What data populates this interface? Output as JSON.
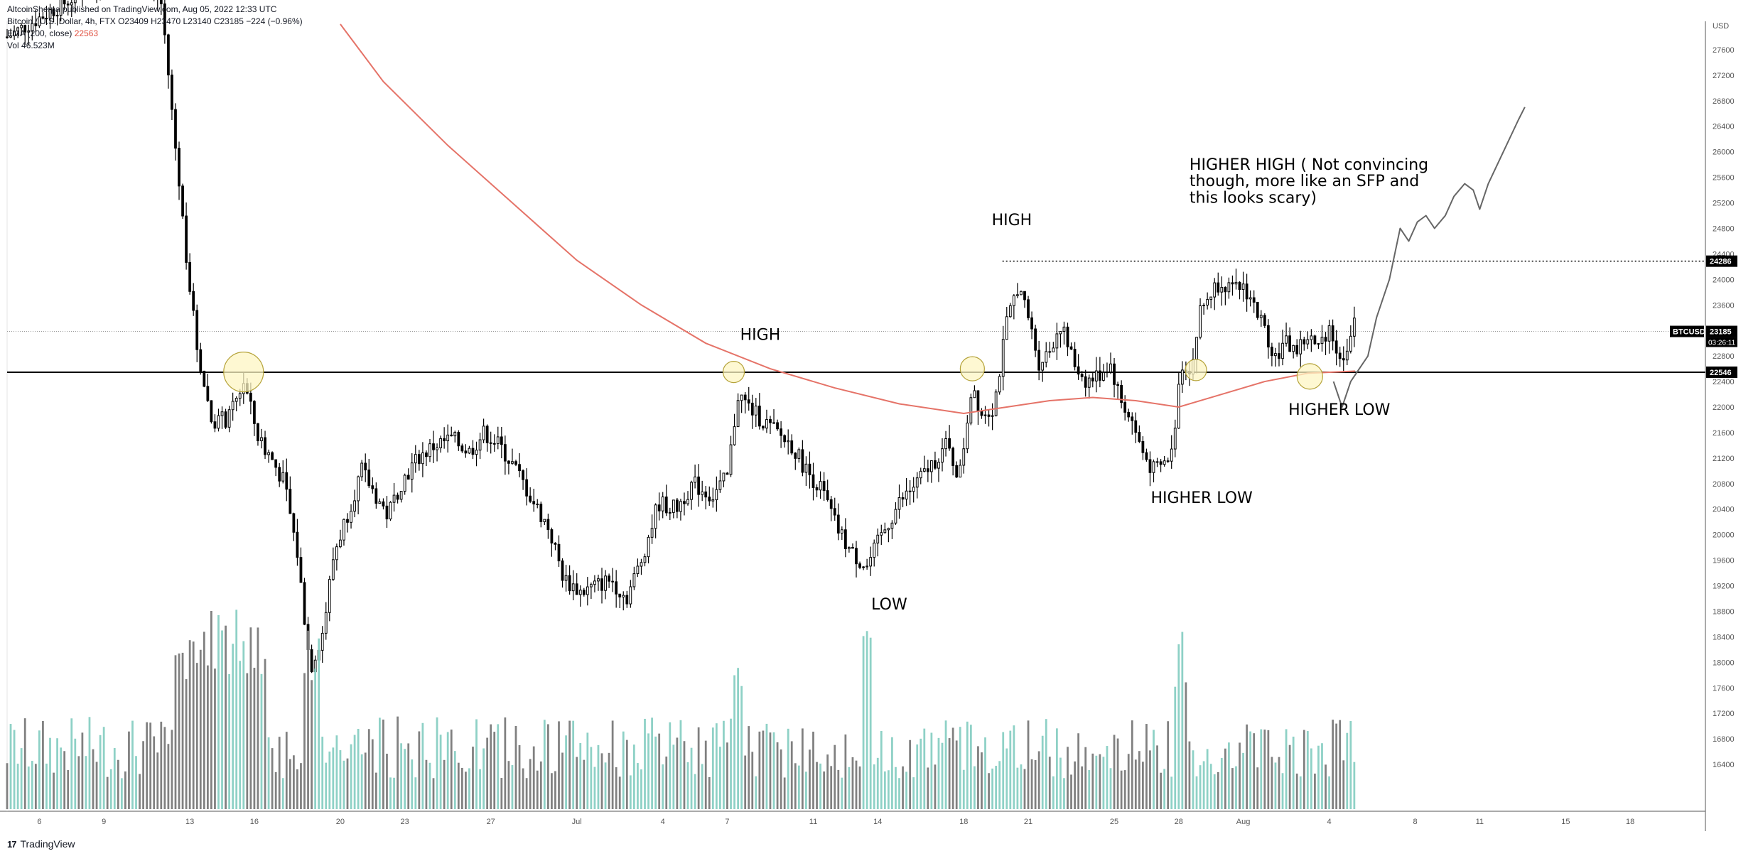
{
  "header": {
    "published_by": "AltcoinSherpa published on TradingView.com, Aug 05, 2022 12:33 UTC",
    "symbol_line_prefix": "Bitcoin / U.S. Dollar, 4h, FTX",
    "ohlc": "O23409  H23470  L23140  C23185  −224 (−0.96%)",
    "ema_label": "EMA (200, close)",
    "ema_value": "22563",
    "vol_label": "Vol",
    "vol_value": "46.523M"
  },
  "footer": {
    "brand": "TradingView"
  },
  "colors": {
    "candle": "#000000",
    "ema": "#e57368",
    "vol_up": "#8ed1c6",
    "vol_down": "#808080",
    "circle_fill": "#fdf6c3",
    "circle_stroke": "#b5a33a"
  },
  "chart_data": {
    "type": "candlestick",
    "title": "Bitcoin / U.S. Dollar, 4h, FTX",
    "currency": "USD",
    "ylim": [
      16000,
      28000
    ],
    "y_ticks": [
      16400,
      16800,
      17200,
      17600,
      18000,
      18400,
      18800,
      19200,
      19600,
      20000,
      20400,
      20800,
      21200,
      21600,
      22000,
      22400,
      22800,
      23200,
      23600,
      24000,
      24400,
      24800,
      25200,
      25600,
      26000,
      26400,
      26800,
      27200,
      27600
    ],
    "x_ticks": [
      {
        "label": "6",
        "day": 6
      },
      {
        "label": "9",
        "day": 9
      },
      {
        "label": "13",
        "day": 13
      },
      {
        "label": "16",
        "day": 16
      },
      {
        "label": "20",
        "day": 20
      },
      {
        "label": "23",
        "day": 23
      },
      {
        "label": "27",
        "day": 27
      },
      {
        "label": "Jul",
        "day": 31
      },
      {
        "label": "4",
        "day": 35
      },
      {
        "label": "7",
        "day": 38
      },
      {
        "label": "11",
        "day": 42
      },
      {
        "label": "14",
        "day": 45
      },
      {
        "label": "18",
        "day": 49
      },
      {
        "label": "21",
        "day": 52
      },
      {
        "label": "25",
        "day": 56
      },
      {
        "label": "28",
        "day": 59
      },
      {
        "label": "Aug",
        "day": 62
      },
      {
        "label": "4",
        "day": 66
      },
      {
        "label": "8",
        "day": 70
      },
      {
        "label": "11",
        "day": 73
      },
      {
        "label": "15",
        "day": 77
      },
      {
        "label": "18",
        "day": 80
      }
    ],
    "price_keypoints": [
      [
        4.5,
        27800
      ],
      [
        10.5,
        29000
      ],
      [
        11.7,
        28300
      ],
      [
        12.2,
        26500
      ],
      [
        12.8,
        24500
      ],
      [
        13.3,
        23000
      ],
      [
        14.0,
        21800
      ],
      [
        14.8,
        21800
      ],
      [
        15.5,
        22400
      ],
      [
        16.2,
        21500
      ],
      [
        16.8,
        21200
      ],
      [
        17.4,
        20800
      ],
      [
        18.0,
        19700
      ],
      [
        18.6,
        17900
      ],
      [
        19.2,
        18500
      ],
      [
        19.7,
        19700
      ],
      [
        20.3,
        20300
      ],
      [
        21.0,
        21000
      ],
      [
        21.5,
        20700
      ],
      [
        22.2,
        20300
      ],
      [
        22.8,
        20800
      ],
      [
        23.6,
        21200
      ],
      [
        24.4,
        21400
      ],
      [
        25.2,
        21500
      ],
      [
        26.0,
        21300
      ],
      [
        26.7,
        21600
      ],
      [
        27.4,
        21400
      ],
      [
        28.2,
        21000
      ],
      [
        29.0,
        20500
      ],
      [
        29.7,
        20100
      ],
      [
        30.4,
        19300
      ],
      [
        31.2,
        19100
      ],
      [
        31.9,
        19200
      ],
      [
        32.6,
        19300
      ],
      [
        33.3,
        19000
      ],
      [
        34.0,
        19600
      ],
      [
        34.8,
        20500
      ],
      [
        35.6,
        20400
      ],
      [
        36.4,
        20800
      ],
      [
        37.3,
        20600
      ],
      [
        38.0,
        20900
      ],
      [
        38.5,
        22200
      ],
      [
        39.0,
        22000
      ],
      [
        39.6,
        21800
      ],
      [
        40.3,
        21600
      ],
      [
        41.0,
        21400
      ],
      [
        41.7,
        21000
      ],
      [
        42.4,
        20700
      ],
      [
        43.1,
        20100
      ],
      [
        43.8,
        19700
      ],
      [
        44.5,
        19500
      ],
      [
        45.2,
        20000
      ],
      [
        46.0,
        20500
      ],
      [
        46.8,
        20800
      ],
      [
        47.5,
        21100
      ],
      [
        48.2,
        21400
      ],
      [
        48.8,
        20900
      ],
      [
        49.4,
        22400
      ],
      [
        49.8,
        21900
      ],
      [
        50.4,
        22000
      ],
      [
        51.0,
        23300
      ],
      [
        51.5,
        23900
      ],
      [
        52.0,
        23400
      ],
      [
        52.5,
        22700
      ],
      [
        53.0,
        22900
      ],
      [
        53.5,
        23300
      ],
      [
        54.1,
        22700
      ],
      [
        54.7,
        22400
      ],
      [
        55.3,
        22500
      ],
      [
        55.8,
        22700
      ],
      [
        56.3,
        22100
      ],
      [
        56.8,
        21800
      ],
      [
        57.3,
        21300
      ],
      [
        57.8,
        21000
      ],
      [
        58.3,
        21100
      ],
      [
        58.7,
        21300
      ],
      [
        59.1,
        22700
      ],
      [
        59.6,
        22600
      ],
      [
        60.0,
        23500
      ],
      [
        60.5,
        23800
      ],
      [
        61.0,
        24000
      ],
      [
        61.5,
        23800
      ],
      [
        62.0,
        23900
      ],
      [
        62.5,
        23600
      ],
      [
        63.0,
        23200
      ],
      [
        63.5,
        22800
      ],
      [
        64.0,
        23000
      ],
      [
        64.5,
        22900
      ],
      [
        65.0,
        23100
      ],
      [
        65.5,
        22900
      ],
      [
        66.0,
        23300
      ],
      [
        66.5,
        22700
      ],
      [
        67.2,
        23300
      ]
    ],
    "ema_200": [
      [
        20.0,
        28000
      ],
      [
        22.0,
        27100
      ],
      [
        25.0,
        26100
      ],
      [
        28.0,
        25200
      ],
      [
        31.0,
        24300
      ],
      [
        34.0,
        23600
      ],
      [
        37.0,
        23000
      ],
      [
        40.0,
        22600
      ],
      [
        43.0,
        22300
      ],
      [
        46.0,
        22050
      ],
      [
        49.0,
        21900
      ],
      [
        51.0,
        22000
      ],
      [
        53.0,
        22100
      ],
      [
        55.0,
        22150
      ],
      [
        57.0,
        22100
      ],
      [
        59.0,
        22000
      ],
      [
        61.0,
        22200
      ],
      [
        63.0,
        22400
      ],
      [
        65.0,
        22530
      ],
      [
        67.2,
        22563
      ]
    ],
    "volume_ylim": [
      0,
      3
    ],
    "projected_path": [
      [
        66.2,
        22400
      ],
      [
        66.6,
        22000
      ],
      [
        67.0,
        22400
      ],
      [
        67.4,
        22600
      ],
      [
        67.8,
        22800
      ],
      [
        68.2,
        23400
      ],
      [
        68.8,
        24000
      ],
      [
        69.3,
        24800
      ],
      [
        69.7,
        24600
      ],
      [
        70.1,
        24900
      ],
      [
        70.5,
        25000
      ],
      [
        70.9,
        24800
      ],
      [
        71.4,
        25000
      ],
      [
        71.8,
        25300
      ],
      [
        72.3,
        25500
      ],
      [
        72.7,
        25400
      ],
      [
        73.0,
        25100
      ],
      [
        73.4,
        25500
      ],
      [
        74.1,
        26000
      ],
      [
        74.8,
        26500
      ],
      [
        75.1,
        26700
      ]
    ],
    "levels": [
      {
        "price": 24286,
        "style": "dotted",
        "label": "24286"
      },
      {
        "price": 22546,
        "style": "solid",
        "label": "22546"
      }
    ],
    "current_price": {
      "label": "BTCUSD",
      "value": "23185",
      "countdown": "03:26:11"
    },
    "annotations": [
      {
        "text": "HIGH",
        "day": 38.6,
        "price": 23050
      },
      {
        "text": "HIGH",
        "day": 50.3,
        "price": 24850
      },
      {
        "text": "LOW",
        "day": 44.7,
        "price": 18830
      },
      {
        "text": "HIGHER LOW",
        "day": 57.7,
        "price": 20500
      },
      {
        "text": "HIGHER LOW",
        "day": 64.1,
        "price": 21880
      },
      {
        "text": "HIGHER HIGH ( Not convincing",
        "day": 59.5,
        "price": 25720
      },
      {
        "text": "though, more like an SFP and",
        "day": 59.5,
        "price": 25460
      },
      {
        "text": "this looks scary)",
        "day": 59.5,
        "price": 25200
      }
    ],
    "circled_points": [
      {
        "day": 15.5,
        "price": 22550,
        "r": 28
      },
      {
        "day": 38.3,
        "price": 22550,
        "r": 15
      },
      {
        "day": 49.4,
        "price": 22600,
        "r": 17
      },
      {
        "day": 59.8,
        "price": 22580,
        "r": 15
      },
      {
        "day": 65.1,
        "price": 22480,
        "r": 18
      }
    ]
  }
}
